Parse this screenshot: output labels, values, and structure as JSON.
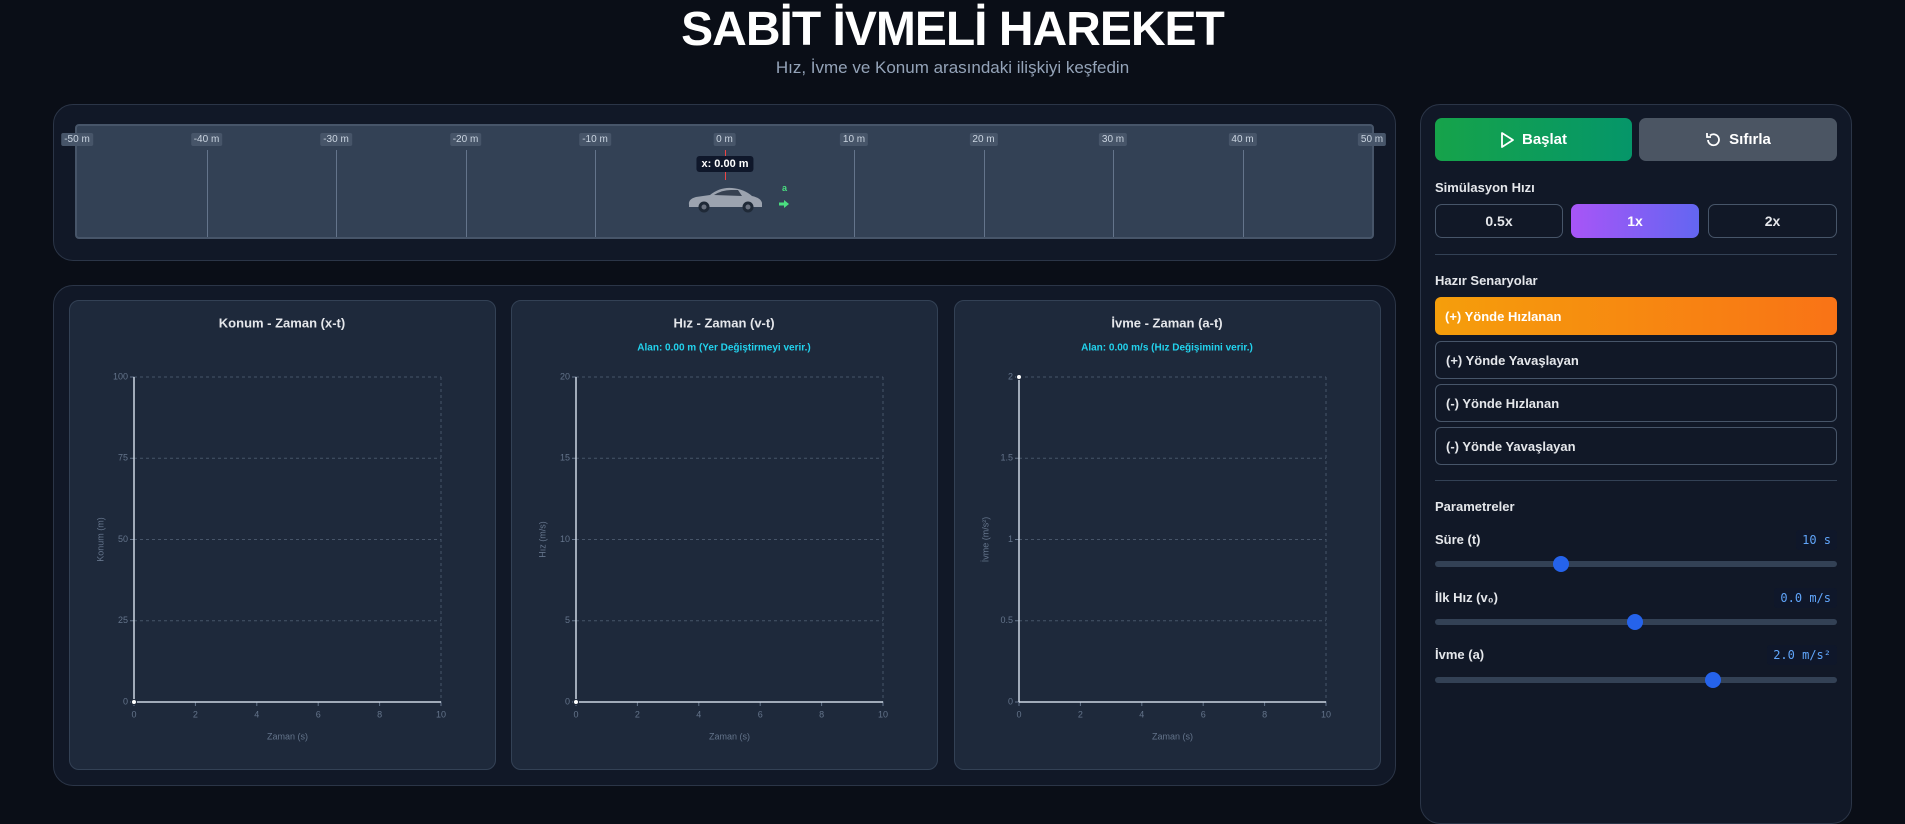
{
  "header": {
    "title": "SABİT İVMELİ HAREKET",
    "subtitle": "Hız, İvme ve Konum arasındaki ilişkiyi keşfedin"
  },
  "track": {
    "ticks": [
      "-50 m",
      "-40 m",
      "-30 m",
      "-20 m",
      "-10 m",
      "0 m",
      "10 m",
      "20 m",
      "30 m",
      "40 m",
      "50 m"
    ],
    "position_label": "x: 0.00 m",
    "acceleration_label": "a"
  },
  "controls": {
    "start": "Başlat",
    "reset": "Sıfırla",
    "speed_title": "Simülasyon Hızı",
    "speeds": [
      "0.5x",
      "1x",
      "2x"
    ],
    "scenarios_title": "Hazır Senaryolar",
    "scenarios": [
      "(+) Yönde Hızlanan",
      "(+) Yönde Yavaşlayan",
      "(-) Yönde Hızlanan",
      "(-) Yönde Yavaşlayan"
    ],
    "parameters_title": "Parametreler",
    "parameters": [
      {
        "label": "Süre (t)",
        "value": "10 s"
      },
      {
        "label": "İlk Hız (v₀)",
        "value": "0.0 m/s"
      },
      {
        "label": "İvme (a)",
        "value": "2.0 m/s²"
      }
    ]
  },
  "chart_data": [
    {
      "type": "line",
      "title": "Konum - Zaman (x-t)",
      "x_label": "Zaman (s)",
      "y_label": "Konum (m)",
      "x": [
        0
      ],
      "series": [
        {
          "color": "#ffffff",
          "values": [
            0
          ]
        }
      ],
      "xlim": [
        0,
        10
      ],
      "xticks": [
        0,
        2,
        4,
        6,
        8,
        10
      ],
      "ylim": [
        0,
        100
      ],
      "yticks": [
        0,
        25,
        50,
        75,
        100
      ],
      "grid": true
    },
    {
      "type": "line",
      "title": "Hız - Zaman (v-t)",
      "subtitle": "Alan: 0.00 m (Yer Değiştirmeyi verir.)",
      "x_label": "Zaman (s)",
      "y_label": "Hız (m/s)",
      "x": [
        0
      ],
      "series": [
        {
          "color": "#ffffff",
          "values": [
            0
          ]
        }
      ],
      "xlim": [
        0,
        10
      ],
      "xticks": [
        0,
        2,
        4,
        6,
        8,
        10
      ],
      "ylim": [
        0,
        20
      ],
      "yticks": [
        0,
        5,
        10,
        15,
        20
      ],
      "grid": true
    },
    {
      "type": "line",
      "title": "İvme - Zaman (a-t)",
      "subtitle": "Alan: 0.00 m/s (Hız Değişimini verir.)",
      "x_label": "Zaman (s)",
      "y_label": "İvme (m/s²)",
      "x": [
        0
      ],
      "series": [
        {
          "color": "#ffffff",
          "values": [
            2
          ]
        }
      ],
      "xlim": [
        0,
        10
      ],
      "xticks": [
        0,
        2,
        4,
        6,
        8,
        10
      ],
      "ylim": [
        0,
        2
      ],
      "yticks": [
        0,
        0.5,
        1,
        1.5,
        2
      ],
      "grid": true
    }
  ]
}
